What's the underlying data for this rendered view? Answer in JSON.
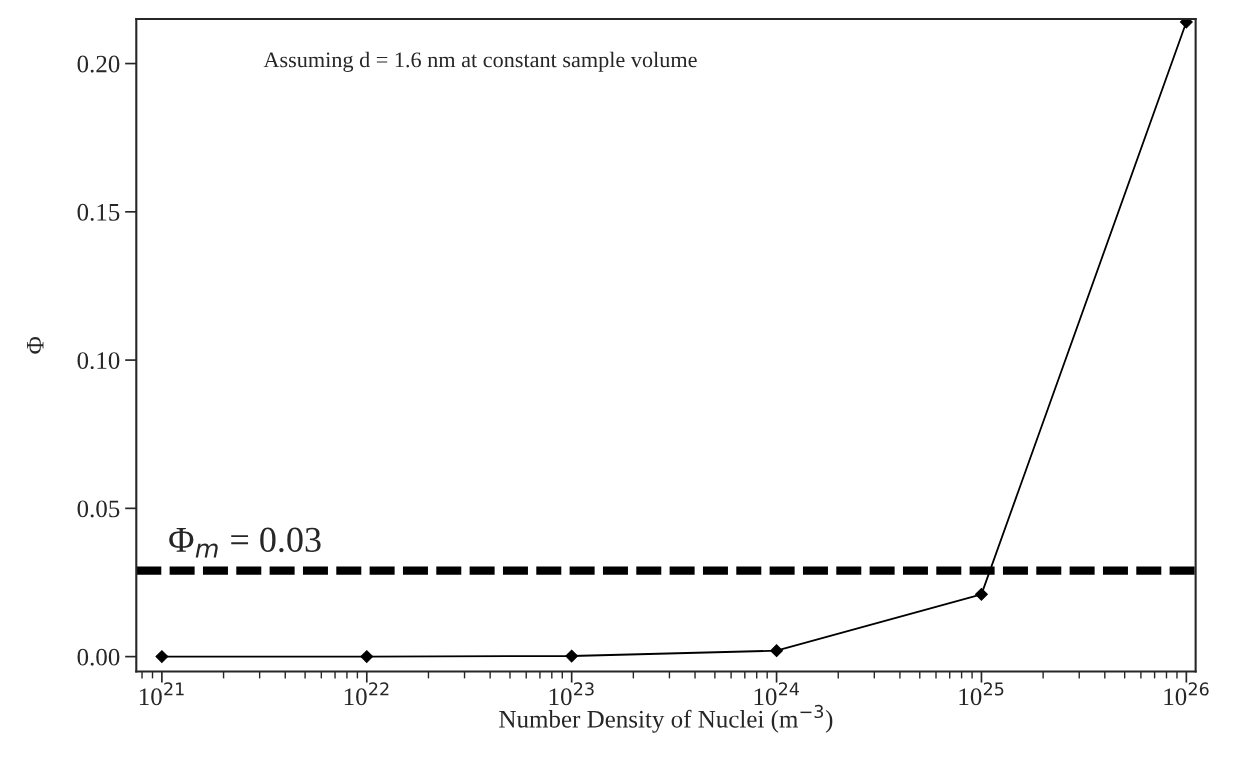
{
  "chart_data": {
    "type": "line",
    "xlabel": "Number Density of Nuclei (m$^{−3}$)",
    "ylabel": "Φ",
    "annotations": [
      "Assuming d = 1.6 nm at constant sample volume"
    ],
    "x": [
      1e+21,
      1e+22,
      1e+23,
      1e+24,
      1e+25,
      1e+26
    ],
    "series": [
      {
        "color": "#000000",
        "values": [
          0,
          0,
          0.0002,
          0.002,
          0.021,
          0.214
        ]
      }
    ],
    "log": "x",
    "marker": "diamond",
    "line_style": "solid",
    "grid": false,
    "legend": false,
    "xlim": [
      7.5e+20,
      1.11e+26
    ],
    "ylim": [
      -0.005,
      0.215
    ],
    "xticks": [
      {
        "value": 1e+21,
        "label": "10$^{21}$"
      },
      {
        "value": 1e+22,
        "label": "10$^{22}$"
      },
      {
        "value": 1e+23,
        "label": "10$^{23}$"
      },
      {
        "value": 1e+24,
        "label": "10$^{24}$"
      },
      {
        "value": 1e+25,
        "label": "10$^{25}$"
      },
      {
        "value": 1e+26,
        "label": "10$^{26}$"
      }
    ],
    "yticks": [
      {
        "value": 0,
        "label": "0.00"
      },
      {
        "value": 0.05,
        "label": "0.05"
      },
      {
        "value": 0.1,
        "label": "0.10"
      },
      {
        "value": 0.15,
        "label": "0.15"
      },
      {
        "value": 0.2,
        "label": "0.20"
      }
    ],
    "ref_lines": [
      {
        "axis": "y",
        "value": 0.029,
        "label": "Φ$_{m}$ = 0.03",
        "color": "#000000",
        "line_style": "dashed"
      }
    ]
  }
}
